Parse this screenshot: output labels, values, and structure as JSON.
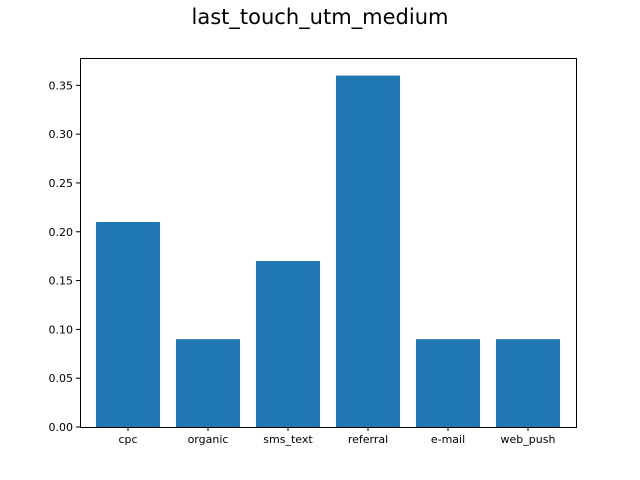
{
  "chart_data": {
    "type": "bar",
    "title": "last_touch_utm_medium",
    "xlabel": "",
    "ylabel": "",
    "categories": [
      "cpc",
      "organic",
      "sms_text",
      "referral",
      "e-mail",
      "web_push"
    ],
    "values": [
      0.21,
      0.09,
      0.17,
      0.36,
      0.09,
      0.09
    ],
    "ylim": [
      0,
      0.378
    ],
    "yticks": [
      "0.00",
      "0.05",
      "0.10",
      "0.15",
      "0.20",
      "0.25",
      "0.30",
      "0.35"
    ],
    "bar_color": "#1f77b4",
    "grid": false,
    "legend": "none"
  }
}
